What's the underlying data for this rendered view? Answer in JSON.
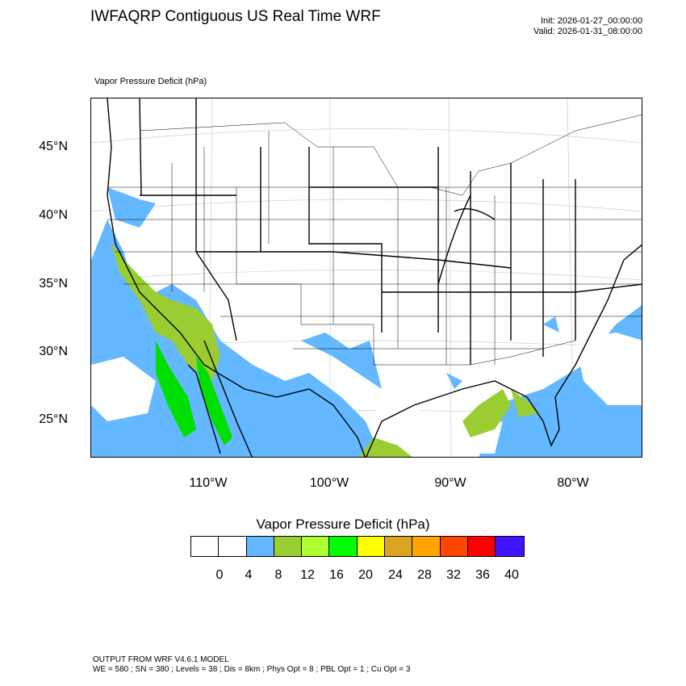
{
  "header": {
    "title": "IWFAQRP Contiguous US Real Time WRF",
    "init": "Init: 2026-01-27_00:00:00",
    "valid": "Valid: 2026-01-31_08:00:00"
  },
  "field_label": "Vapor Pressure Deficit   (hPa)",
  "axes": {
    "lat_labels": [
      "45°N",
      "40°N",
      "35°N",
      "30°N",
      "25°N"
    ],
    "lon_labels": [
      "110°W",
      "100°W",
      "90°W",
      "80°W"
    ]
  },
  "legend": {
    "title": "Vapor Pressure Deficit  (hPa)",
    "colors": [
      "#ffffff",
      "#ffffff",
      "#63b8ff",
      "#9acd32",
      "#adff2f",
      "#00ff00",
      "#ffff00",
      "#daa520",
      "#ffa500",
      "#ff4500",
      "#ff0000",
      "#4014ff"
    ],
    "ticks": [
      "0",
      "4",
      "8",
      "12",
      "16",
      "20",
      "24",
      "28",
      "32",
      "36",
      "40"
    ]
  },
  "footer": {
    "line1": "OUTPUT FROM WRF V4.6.1 MODEL",
    "line2": "WE = 580 ; SN = 380 ; Levels = 38 ; Dis = 8km ; Phys Opt = 8 ; PBL Opt = 1 ; Cu Opt = 3"
  }
}
